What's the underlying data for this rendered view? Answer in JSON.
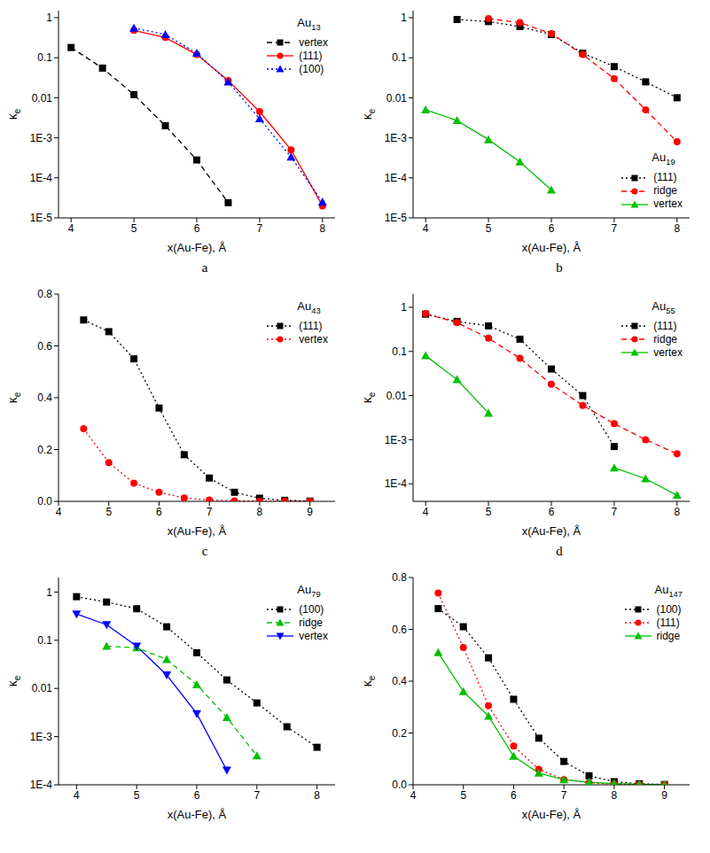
{
  "chart_data": [
    {
      "type": "line",
      "panel": "a",
      "title": "Au13",
      "x_label": "x(Au-Fe), Å",
      "y_label": "κe",
      "log": "y",
      "grid": false,
      "legend": "upper right",
      "xlim": [
        3.8,
        8.2
      ],
      "xticks": [
        4,
        5,
        6,
        7,
        8
      ],
      "ylim": [
        1e-05,
        1.5
      ],
      "yticks": [
        {
          "value": 1e-05,
          "label": "1E-5"
        },
        {
          "value": 0.0001,
          "label": "1E-4"
        },
        {
          "value": 0.001,
          "label": "1E-3"
        },
        0.01,
        0.1,
        1
      ],
      "series": [
        {
          "name": "vertex",
          "color": "#000000",
          "marker": "square",
          "line_style": "dashed",
          "x": [
            4,
            4.5,
            5,
            5.5,
            6,
            6.5
          ],
          "values": [
            0.18,
            0.055,
            0.012,
            0.002,
            0.00028,
            2.4e-05
          ]
        },
        {
          "name": "(111)",
          "color": "#ff0000",
          "marker": "circle",
          "line_style": "solid",
          "x": [
            5,
            5.5,
            6,
            6.5,
            7,
            7.5,
            8
          ],
          "values": [
            0.48,
            0.32,
            0.12,
            0.027,
            0.0045,
            0.0005,
            2e-05
          ]
        },
        {
          "name": "(100)",
          "color": "#0000ff",
          "marker": "triangle",
          "line_style": "dotted",
          "x": [
            5,
            5.5,
            6,
            6.5,
            7,
            7.5,
            8
          ],
          "values": [
            0.55,
            0.38,
            0.13,
            0.025,
            0.003,
            0.00033,
            2.5e-05
          ]
        }
      ]
    },
    {
      "type": "line",
      "panel": "b",
      "title": "Au19",
      "x_label": "x(Au-Fe), Å",
      "y_label": "κe",
      "log": "y",
      "grid": false,
      "legend": "lower right",
      "xlim": [
        3.8,
        8.2
      ],
      "xticks": [
        4,
        5,
        6,
        7,
        8
      ],
      "ylim": [
        1e-05,
        1.5
      ],
      "yticks": [
        {
          "value": 1e-05,
          "label": "1E-5"
        },
        {
          "value": 0.0001,
          "label": "1E-4"
        },
        {
          "value": 0.001,
          "label": "1E-3"
        },
        0.01,
        0.1,
        1
      ],
      "series": [
        {
          "name": "(111)",
          "color": "#000000",
          "marker": "square",
          "line_style": "dotted",
          "x": [
            4.5,
            5,
            5.5,
            6,
            6.5,
            7,
            7.5,
            8
          ],
          "values": [
            0.9,
            0.8,
            0.6,
            0.38,
            0.13,
            0.06,
            0.025,
            0.01
          ]
        },
        {
          "name": "ridge",
          "color": "#ff0000",
          "marker": "circle",
          "line_style": "dashed",
          "x": [
            5,
            5.5,
            6,
            6.5,
            7,
            7.5,
            8
          ],
          "values": [
            0.95,
            0.75,
            0.4,
            0.12,
            0.03,
            0.005,
            0.0008
          ]
        },
        {
          "name": "vertex",
          "color": "#00c000",
          "marker": "triangle",
          "line_style": "solid",
          "x": [
            4,
            4.5,
            5,
            5.5,
            6
          ],
          "values": [
            0.005,
            0.0027,
            0.0009,
            0.00025,
            5e-05
          ]
        }
      ]
    },
    {
      "type": "line",
      "panel": "c",
      "title": "Au43",
      "x_label": "x(Au-Fe), Å",
      "y_label": "κe",
      "grid": false,
      "legend": "upper right",
      "xlim": [
        4,
        9.5
      ],
      "xticks": [
        4,
        5,
        6,
        7,
        8,
        9
      ],
      "ylim": [
        0,
        0.8
      ],
      "yticks": [
        {
          "value": 0,
          "label": "0.0"
        },
        0.2,
        0.4,
        0.6,
        0.8
      ],
      "series": [
        {
          "name": "(111)",
          "color": "#000000",
          "marker": "square",
          "line_style": "dotted",
          "x": [
            4.5,
            5,
            5.5,
            6,
            6.5,
            7,
            7.5,
            8,
            8.5,
            9
          ],
          "values": [
            0.7,
            0.655,
            0.55,
            0.36,
            0.18,
            0.09,
            0.035,
            0.012,
            0.004,
            0.001
          ]
        },
        {
          "name": "vertex",
          "color": "#ff0000",
          "marker": "circle",
          "line_style": "dotted",
          "x": [
            4.5,
            5,
            5.5,
            6,
            6.5,
            7,
            7.5,
            8,
            8.5,
            9
          ],
          "values": [
            0.28,
            0.15,
            0.07,
            0.035,
            0.013,
            0.005,
            0.002,
            0.001,
            0.0005,
            0.0002
          ]
        }
      ]
    },
    {
      "type": "line",
      "panel": "d",
      "title": "Au55",
      "x_label": "x(Au-Fe), Å",
      "y_label": "κe",
      "log": "y",
      "grid": false,
      "legend": "upper right",
      "xlim": [
        3.8,
        8.2
      ],
      "xticks": [
        4,
        5,
        6,
        7,
        8
      ],
      "ylim": [
        4e-05,
        2
      ],
      "yticks": [
        {
          "value": 0.0001,
          "label": "1E-4"
        },
        {
          "value": 0.001,
          "label": "1E-3"
        },
        0.01,
        0.1,
        1
      ],
      "series": [
        {
          "name": "(111)",
          "color": "#000000",
          "marker": "square",
          "line_style": "dotted",
          "x": [
            4,
            4.5,
            5,
            5.5,
            6,
            6.5,
            7
          ],
          "values": [
            0.7,
            0.48,
            0.38,
            0.19,
            0.04,
            0.01,
            0.0007
          ]
        },
        {
          "name": "ridge",
          "color": "#ff0000",
          "marker": "circle",
          "line_style": "dashed",
          "x": [
            4,
            4.5,
            5,
            5.5,
            6,
            6.5,
            7,
            7.5,
            8
          ],
          "values": [
            0.72,
            0.45,
            0.2,
            0.07,
            0.018,
            0.006,
            0.0023,
            0.001,
            0.00048
          ]
        },
        {
          "name": "vertex",
          "color": "#00c000",
          "marker": "triangle",
          "line_style": "solid",
          "x": [
            4,
            4.5,
            5,
            5.5,
            6,
            6.5,
            7,
            7.5,
            8
          ],
          "values": [
            0.08,
            0.023,
            0.004,
            null,
            null,
            null,
            0.00023,
            0.00013,
            5.5e-05
          ]
        }
      ]
    },
    {
      "type": "line",
      "title": "Au79",
      "x_label": "x(Au-Fe), Å",
      "y_label": "κe",
      "log": "y",
      "grid": false,
      "legend": "upper right",
      "xlim": [
        3.7,
        8.3
      ],
      "xticks": [
        4,
        5,
        6,
        7,
        8
      ],
      "ylim": [
        0.0001,
        2
      ],
      "yticks": [
        {
          "value": 0.0001,
          "label": "1E-4"
        },
        {
          "value": 0.001,
          "label": "1E-3"
        },
        0.01,
        0.1,
        1
      ],
      "series": [
        {
          "name": "(100)",
          "color": "#000000",
          "marker": "square",
          "line_style": "dotted",
          "x": [
            4,
            4.5,
            5,
            5.5,
            6,
            6.5,
            7,
            7.5,
            8
          ],
          "values": [
            0.8,
            0.62,
            0.45,
            0.19,
            0.055,
            0.015,
            0.005,
            0.0016,
            0.0006
          ]
        },
        {
          "name": "ridge",
          "color": "#00c000",
          "marker": "triangle",
          "line_style": "dashed",
          "x": [
            4.5,
            5,
            5.5,
            6,
            6.5,
            7
          ],
          "values": [
            0.075,
            0.07,
            0.04,
            0.012,
            0.0025,
            0.0004
          ]
        },
        {
          "name": "vertex",
          "color": "#0000ff",
          "marker": "triangle-down",
          "line_style": "solid",
          "x": [
            4,
            4.5,
            5,
            5.5,
            6,
            6.5
          ],
          "values": [
            0.35,
            0.21,
            0.075,
            0.019,
            0.003,
            0.0002
          ]
        }
      ]
    },
    {
      "type": "line",
      "title": "Au147",
      "x_label": "x(Au-Fe), Å",
      "y_label": "κe",
      "grid": false,
      "legend": "upper right",
      "xlim": [
        4,
        9.5
      ],
      "xticks": [
        4,
        5,
        6,
        7,
        8,
        9
      ],
      "ylim": [
        0,
        0.8
      ],
      "yticks": [
        {
          "value": 0,
          "label": "0.0"
        },
        0.2,
        0.4,
        0.6,
        0.8
      ],
      "series": [
        {
          "name": "(100)",
          "color": "#000000",
          "marker": "square",
          "line_style": "dotted",
          "x": [
            4.5,
            5,
            5.5,
            6,
            6.5,
            7,
            7.5,
            8,
            8.5,
            9
          ],
          "values": [
            0.68,
            0.61,
            0.49,
            0.33,
            0.18,
            0.09,
            0.035,
            0.012,
            0.004,
            0.001
          ]
        },
        {
          "name": "(111)",
          "color": "#ff0000",
          "marker": "circle",
          "line_style": "dotted",
          "x": [
            4.5,
            5,
            5.5,
            6,
            6.5,
            7,
            7.5,
            8,
            8.5,
            9
          ],
          "values": [
            0.74,
            0.53,
            0.305,
            0.15,
            0.06,
            0.02,
            0.008,
            0.003,
            0.001,
            0.0005
          ]
        },
        {
          "name": "ridge",
          "color": "#00c000",
          "marker": "triangle",
          "line_style": "solid",
          "x": [
            4.5,
            5,
            5.5,
            6,
            6.5,
            7,
            7.5,
            8,
            8.5,
            9
          ],
          "values": [
            0.51,
            0.36,
            0.265,
            0.11,
            0.045,
            0.02,
            0.01,
            0.005,
            0.002,
            0.001
          ]
        }
      ]
    }
  ]
}
